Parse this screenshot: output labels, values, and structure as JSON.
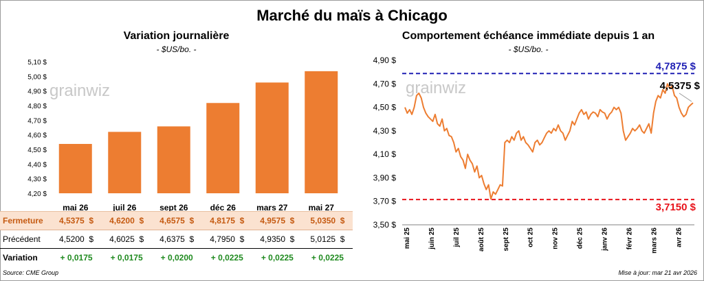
{
  "title": "Marché du maïs à Chicago",
  "left": {
    "title": "Variation journalière",
    "unit": "- $US/bo. -",
    "watermark": "grainwiz"
  },
  "right": {
    "title": "Comportement échéance immédiate depuis 1 an",
    "unit": "- $US/bo. -",
    "watermark": "grainwiz"
  },
  "table": {
    "row_labels": {
      "close": "Fermeture",
      "previous": "Précédent",
      "variation": "Variation"
    },
    "columns": [
      {
        "contract": "mai 26",
        "close": "4,5375",
        "previous": "4,5200",
        "variation": "+ 0,0175"
      },
      {
        "contract": "juil 26",
        "close": "4,6200",
        "previous": "4,6025",
        "variation": "+ 0,0175"
      },
      {
        "contract": "sept 26",
        "close": "4,6575",
        "previous": "4,6375",
        "variation": "+ 0,0200"
      },
      {
        "contract": "déc 26",
        "close": "4,8175",
        "previous": "4,7950",
        "variation": "+ 0,0225"
      },
      {
        "contract": "mars 27",
        "close": "4,9575",
        "previous": "4,9350",
        "variation": "+ 0,0225"
      },
      {
        "contract": "mai 27",
        "close": "5,0350",
        "previous": "5,0125",
        "variation": "+ 0,0225"
      }
    ],
    "currency": "$"
  },
  "footer": {
    "source": "Source: CME Group",
    "update": "Mise à jour: mar 21 avr 2026"
  },
  "colors": {
    "bar": "#ed7d31",
    "line": "#ed7d31",
    "high": "#1f1fb4",
    "low": "#e8131b",
    "positive": "#1f8a1f"
  },
  "chart_data": [
    {
      "type": "bar",
      "title": "Variation journalière",
      "unit": "- $US/bo. -",
      "categories": [
        "mai 26",
        "juil 26",
        "sept 26",
        "déc 26",
        "mars 27",
        "mai 27"
      ],
      "values": [
        4.5375,
        4.62,
        4.6575,
        4.8175,
        4.9575,
        5.035
      ],
      "ylim": [
        4.2,
        5.1
      ],
      "yticks": [
        "4,20 $",
        "4,30 $",
        "4,40 $",
        "4,50 $",
        "4,60 $",
        "4,70 $",
        "4,80 $",
        "4,90 $",
        "5,00 $",
        "5,10 $"
      ],
      "ytick_values": [
        4.2,
        4.3,
        4.4,
        4.5,
        4.6,
        4.7,
        4.8,
        4.9,
        5.0,
        5.1
      ]
    },
    {
      "type": "line",
      "title": "Comportement échéance immédiate depuis 1 an",
      "unit": "- $US/bo. -",
      "ylim": [
        3.5,
        4.9
      ],
      "yticks": [
        "3,50 $",
        "3,70 $",
        "3,90 $",
        "4,10 $",
        "4,30 $",
        "4,50 $",
        "4,70 $",
        "4,90 $"
      ],
      "ytick_values": [
        3.5,
        3.7,
        3.9,
        4.1,
        4.3,
        4.5,
        4.7,
        4.9
      ],
      "xticks": [
        "mai 25",
        "juin 25",
        "juil 25",
        "août 25",
        "sept 25",
        "oct 25",
        "nov 25",
        "déc 25",
        "janv 26",
        "févr 26",
        "mars 26",
        "avr 26"
      ],
      "high": {
        "value": 4.7875,
        "label": "4,7875 $"
      },
      "low": {
        "value": 3.715,
        "label": "3,7150 $"
      },
      "last": {
        "value": 4.5375,
        "label": "4,5375 $"
      },
      "series": [
        {
          "name": "Échéance immédiate",
          "values": [
            4.5,
            4.45,
            4.48,
            4.44,
            4.5,
            4.6,
            4.62,
            4.58,
            4.5,
            4.45,
            4.42,
            4.4,
            4.38,
            4.44,
            4.36,
            4.34,
            4.4,
            4.3,
            4.32,
            4.26,
            4.25,
            4.2,
            4.12,
            4.15,
            4.08,
            4.05,
            3.98,
            4.1,
            4.05,
            4.02,
            3.95,
            4.0,
            3.9,
            3.92,
            3.85,
            3.8,
            3.84,
            3.72,
            3.78,
            3.76,
            3.8,
            3.84,
            3.83,
            4.2,
            4.22,
            4.2,
            4.25,
            4.22,
            4.28,
            4.3,
            4.22,
            4.25,
            4.2,
            4.18,
            4.15,
            4.12,
            4.2,
            4.22,
            4.18,
            4.2,
            4.24,
            4.28,
            4.3,
            4.28,
            4.32,
            4.3,
            4.35,
            4.3,
            4.28,
            4.22,
            4.26,
            4.3,
            4.38,
            4.35,
            4.4,
            4.45,
            4.48,
            4.44,
            4.46,
            4.4,
            4.44,
            4.46,
            4.45,
            4.42,
            4.48,
            4.46,
            4.45,
            4.4,
            4.44,
            4.46,
            4.5,
            4.48,
            4.5,
            4.45,
            4.3,
            4.22,
            4.25,
            4.28,
            4.32,
            4.3,
            4.32,
            4.35,
            4.3,
            4.28,
            4.32,
            4.36,
            4.28,
            4.45,
            4.55,
            4.6,
            4.58,
            4.65,
            4.62,
            4.7,
            4.66,
            4.68,
            4.6,
            4.58,
            4.5,
            4.45,
            4.42,
            4.44,
            4.5,
            4.52,
            4.5375
          ]
        }
      ]
    }
  ]
}
